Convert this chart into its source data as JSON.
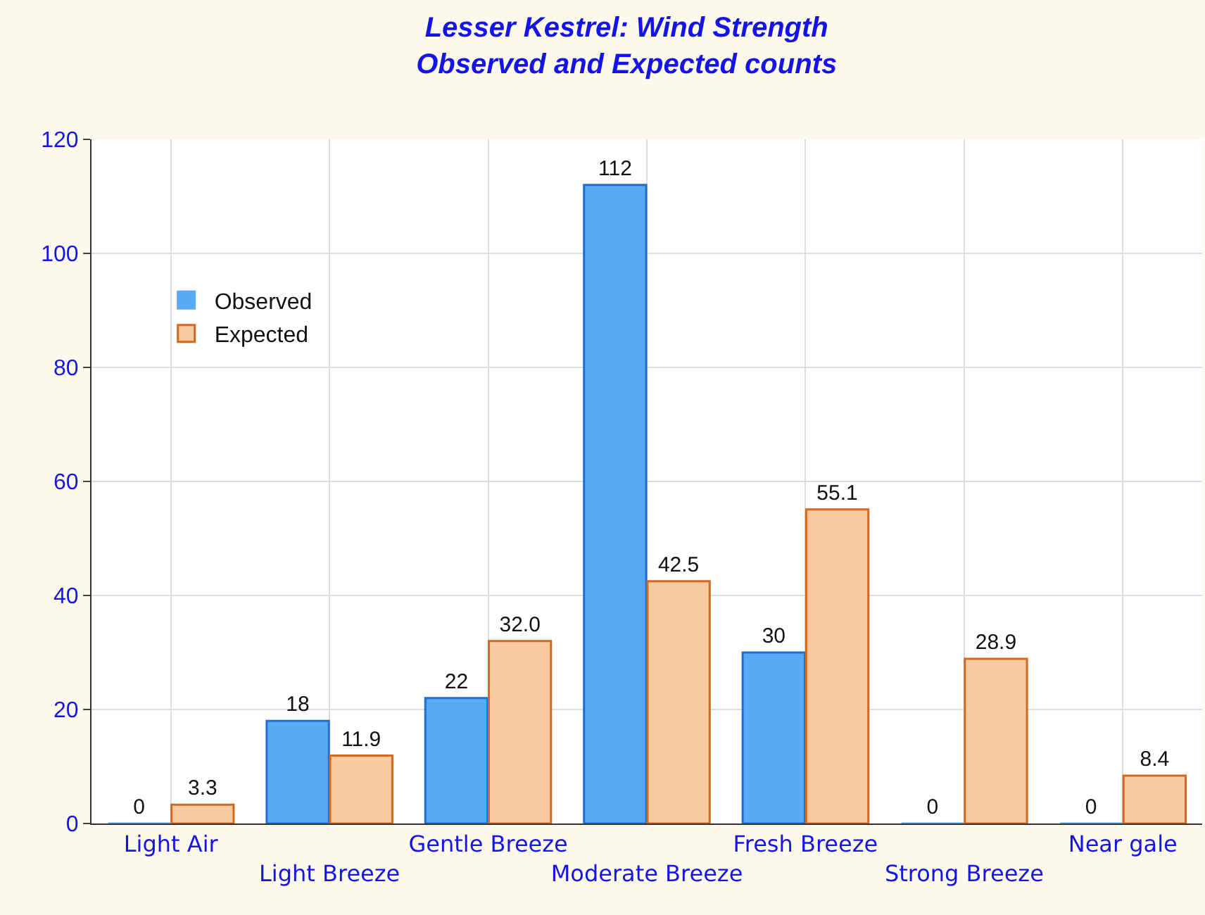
{
  "chart_data": {
    "type": "bar",
    "title": "Lesser Kestrel: Wind Strength\nObserved and Expected counts",
    "categories": [
      "Light Air",
      "Light Breeze",
      "Gentle Breeze",
      "Moderate Breeze",
      "Fresh Breeze",
      "Strong Breeze",
      "Near gale"
    ],
    "series": [
      {
        "name": "Observed",
        "color": "#5aa9f5",
        "values": [
          0,
          18,
          22,
          112,
          30,
          0,
          0
        ],
        "value_labels": [
          "0",
          "18",
          "22",
          "112",
          "30",
          "0",
          "0"
        ]
      },
      {
        "name": "Expected",
        "color": "#f9c9a0",
        "values": [
          3.3,
          11.9,
          32.0,
          42.5,
          55.1,
          28.9,
          8.4
        ],
        "value_labels": [
          "3.3",
          "11.9",
          "32.0",
          "42.5",
          "55.1",
          "28.9",
          "8.4"
        ]
      }
    ],
    "ylim": [
      0,
      120
    ],
    "yticks": [
      0,
      20,
      40,
      60,
      80,
      100,
      120
    ],
    "grid": true,
    "legend": "top left"
  }
}
